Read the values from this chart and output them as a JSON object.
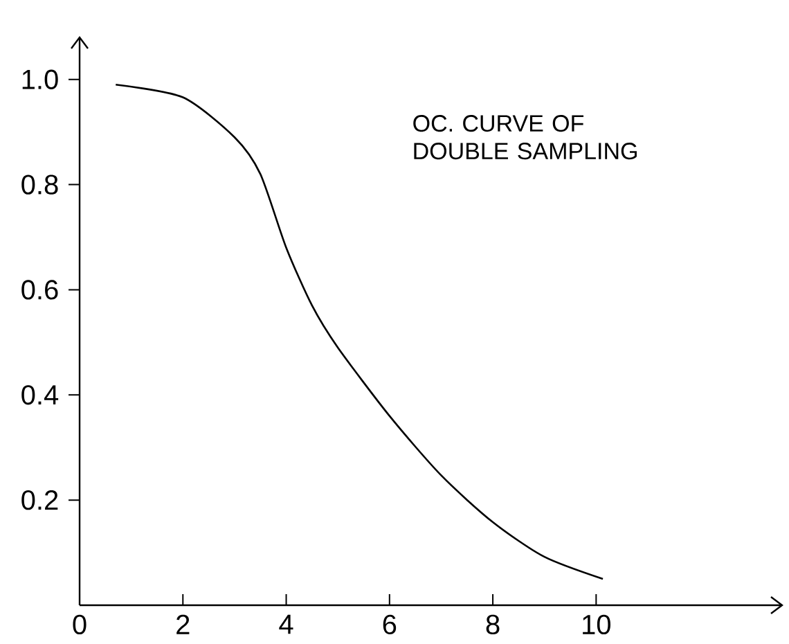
{
  "chart_data": {
    "type": "line",
    "annotations": [
      "OC. CURVE OF DOUBLE SAMPLING"
    ],
    "x": [
      0.7,
      2,
      3,
      3.5,
      4,
      4.5,
      5,
      6,
      7,
      8,
      9,
      10.13
    ],
    "series": [
      {
        "color": "#000000",
        "values": [
          0.99,
          0.966,
          0.89,
          0.82,
          0.68,
          0.57,
          0.49,
          0.36,
          0.247,
          0.158,
          0.092,
          0.05
        ]
      }
    ],
    "xlim": [
      0,
      13.6
    ],
    "ylim": [
      0,
      1.08
    ],
    "xticks": [
      0,
      2,
      4,
      6,
      8,
      10
    ],
    "yticks": [
      0.2,
      0.4,
      0.6,
      0.8,
      {
        "value": 1.0,
        "label": "1.0"
      }
    ],
    "grid": false,
    "legend": false,
    "marker": "none",
    "line_style": "solid"
  }
}
